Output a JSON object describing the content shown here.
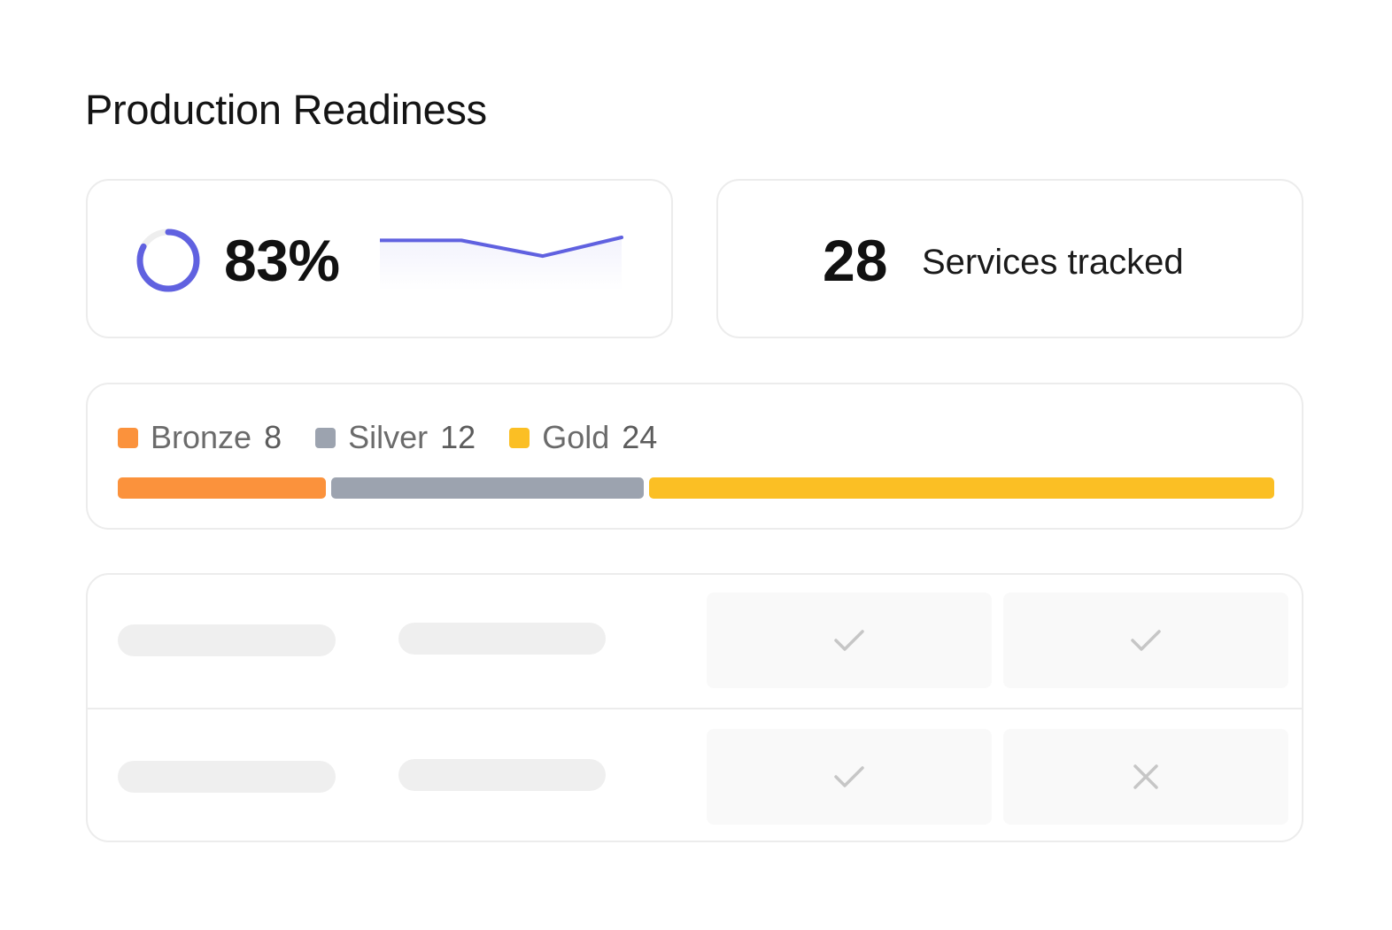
{
  "page": {
    "title": "Production Readiness"
  },
  "readiness": {
    "value_label": "83%",
    "percent": 83,
    "trend": [
      0.9,
      0.9,
      0.38,
      1.0
    ],
    "accent_color": "#6061E0"
  },
  "services": {
    "count": "28",
    "label": "Services tracked"
  },
  "tiers": {
    "items": [
      {
        "label": "Bronze",
        "count": "8",
        "value": 8,
        "color": "#FB923C"
      },
      {
        "label": "Silver",
        "count": "12",
        "value": 12,
        "color": "#9CA3AF"
      },
      {
        "label": "Gold",
        "count": "24",
        "value": 24,
        "color": "#FBBF24"
      }
    ]
  },
  "checklist": {
    "rows": [
      {
        "checks": [
          "check-icon",
          "check-icon"
        ]
      },
      {
        "checks": [
          "check-icon",
          "cross-icon"
        ]
      }
    ]
  }
}
